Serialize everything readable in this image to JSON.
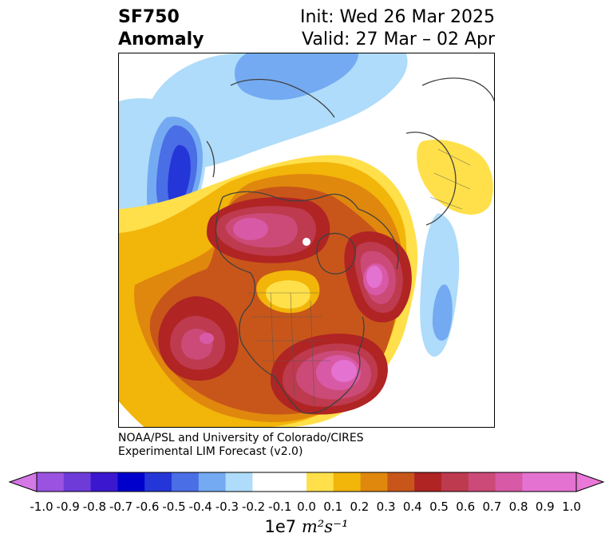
{
  "header": {
    "title_line1": "SF750",
    "title_line2": "Anomaly",
    "init_text": "Init: Wed 26 Mar 2025",
    "valid_text": "Valid: 27 Mar – 02 Apr"
  },
  "credit": {
    "line1": "NOAA/PSL and University of Colorado/CIRES",
    "line2": "Experimental LIM Forecast (v2.0)"
  },
  "colorbar": {
    "ticks": [
      "-1.0",
      "-0.9",
      "-0.8",
      "-0.7",
      "-0.6",
      "-0.5",
      "-0.4",
      "-0.3",
      "-0.2",
      "-0.1",
      "0.0",
      "0.1",
      "0.2",
      "0.3",
      "0.4",
      "0.5",
      "0.6",
      "0.7",
      "0.8",
      "0.9",
      "1.0"
    ],
    "colors": [
      "#9a52e0",
      "#6e3ad8",
      "#3b18d0",
      "#0000cc",
      "#2536d8",
      "#4a6ee6",
      "#74aaf2",
      "#aedcfa",
      "#ffffff",
      "#ffffff",
      "#ffe04a",
      "#f2b50a",
      "#e0880e",
      "#c8561a",
      "#b02424",
      "#be3a4e",
      "#cc4a78",
      "#d85aa6",
      "#e472d0",
      "#e472d0"
    ],
    "under_color": "#d478e6",
    "over_color": "#ea78d8",
    "units_prefix": "1e7",
    "units_math": "m²s⁻¹"
  },
  "map": {
    "projection": "north polar stereographic",
    "variable": "streamfunction anomaly at 750 hPa"
  }
}
